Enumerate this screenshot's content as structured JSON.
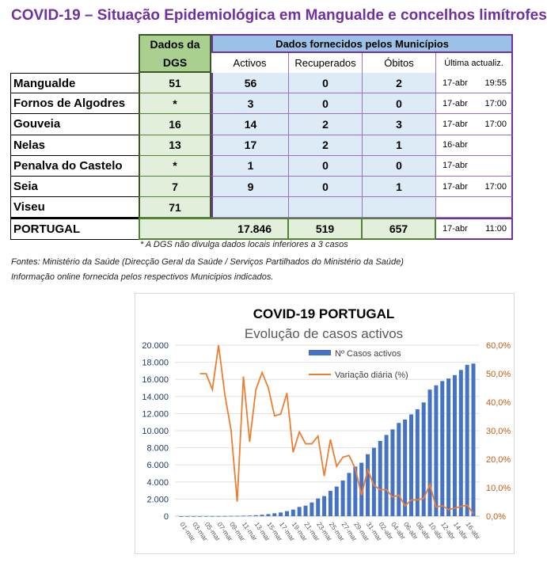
{
  "title": "COVID-19 – Situação Epidemiológica em Mangualde e concelhos limítrofes",
  "table": {
    "dgs_header": [
      "Dados da",
      "DGS"
    ],
    "mun_header": "Dados fornecidos pelos Municípios",
    "columns": [
      "Activos",
      "Recuperados",
      "Óbitos",
      "Última actualiz."
    ],
    "rows": [
      {
        "name": "Mangualde",
        "dgs": "51",
        "activos": "56",
        "recuperados": "0",
        "obitos": "2",
        "date": "17-abr",
        "time": "19:55"
      },
      {
        "name": "Fornos de Algodres",
        "dgs": "*",
        "activos": "3",
        "recuperados": "0",
        "obitos": "0",
        "date": "17-abr",
        "time": "17:00"
      },
      {
        "name": "Gouveia",
        "dgs": "16",
        "activos": "14",
        "recuperados": "2",
        "obitos": "3",
        "date": "17-abr",
        "time": "17:00"
      },
      {
        "name": "Nelas",
        "dgs": "13",
        "activos": "17",
        "recuperados": "2",
        "obitos": "1",
        "date": "16-abr",
        "time": ""
      },
      {
        "name": "Penalva do Castelo",
        "dgs": "*",
        "activos": "1",
        "recuperados": "0",
        "obitos": "0",
        "date": "17-abr",
        "time": ""
      },
      {
        "name": "Seia",
        "dgs": "7",
        "activos": "9",
        "recuperados": "0",
        "obitos": "1",
        "date": "17-abr",
        "time": "17:00"
      },
      {
        "name": "Viseu",
        "dgs": "71",
        "activos": "",
        "recuperados": "",
        "obitos": "",
        "date": "",
        "time": ""
      }
    ],
    "total": {
      "name": "PORTUGAL",
      "activos": "17.846",
      "recuperados": "519",
      "obitos": "657",
      "date": "17-abr",
      "time": "11:00"
    }
  },
  "notes": {
    "footnote": "* A DGS não divulga dados locais inferiores a 3 casos",
    "sources": "Fontes: Ministério da Saúde (Direcção Geral da Saúde / Serviços Partilhados do Ministério da Saúde)",
    "info": "Informação online fornecida pelos respectivos Municipios indicados."
  },
  "colors": {
    "title": "#7030a0",
    "bars": "#4472c4",
    "line": "#ed7d31",
    "dgs_fill": "#e2efda",
    "mun_fill": "#ddebf7",
    "dgs_header": "#a9d08e",
    "mun_header": "#9bc2e6"
  },
  "chart_data": {
    "type": "bar+line",
    "title": "COVID-19 PORTUGAL",
    "subtitle": "Evolução de casos activos",
    "x_start": "01-mar",
    "x_end": "17-abr",
    "x_tick_labels": [
      "01-mar",
      "03-mar",
      "05-mar",
      "07-mar",
      "09-mar",
      "11-mar",
      "13-mar",
      "15-mar",
      "17-mar",
      "19-mar",
      "21-mar",
      "23-mar",
      "25-mar",
      "27-mar",
      "29-mar",
      "31-mar",
      "02-abr",
      "04-abr",
      "06-abr",
      "08-abr",
      "10-abr",
      "12-abr",
      "14-abr",
      "16-abr"
    ],
    "y_ticks": [
      "0",
      "2.000",
      "4.000",
      "6.000",
      "8.000",
      "10.000",
      "12.000",
      "14.000",
      "16.000",
      "18.000",
      "20.000"
    ],
    "y2_ticks": [
      "0,0%",
      "10,0%",
      "20,0%",
      "30,0%",
      "40,0%",
      "50,0%",
      "60,0%"
    ],
    "ylim": [
      0,
      20000
    ],
    "y2lim": [
      0,
      60
    ],
    "legend_position": "top-center",
    "grid": true,
    "series": [
      {
        "name": "Nº Casos activos",
        "type": "bar",
        "axis": "left",
        "values": [
          0,
          2,
          4,
          5,
          9,
          13,
          13,
          21,
          30,
          39,
          58,
          76,
          110,
          165,
          240,
          340,
          430,
          590,
          770,
          1080,
          1230,
          1600,
          2070,
          2350,
          2960,
          3460,
          4170,
          5060,
          5800,
          6250,
          7250,
          8000,
          8800,
          9500,
          10150,
          10900,
          11300,
          11900,
          12500,
          13300,
          14800,
          15300,
          15800,
          16100,
          16500,
          17100,
          17700,
          17846
        ]
      },
      {
        "name": "Variação diária (%)",
        "type": "line",
        "axis": "right",
        "values": [
          null,
          null,
          null,
          50,
          50,
          44.4,
          60,
          42.8,
          30.3,
          5.1,
          49,
          26.1,
          44.4,
          50.4,
          45.1,
          35.2,
          35.8,
          43.2,
          22.4,
          29.6,
          25.4,
          25.4,
          28.1,
          14.1,
          26.9,
          17.5,
          20.7,
          21.3,
          16.7,
          7.4,
          16.3,
          10.8,
          9.3,
          9.3,
          6.7,
          7.4,
          3.6,
          5.7,
          5.7,
          6.2,
          11.1,
          3.2,
          3.7,
          2.3,
          2.8,
          3.4,
          3.9,
          0.9
        ]
      }
    ]
  }
}
